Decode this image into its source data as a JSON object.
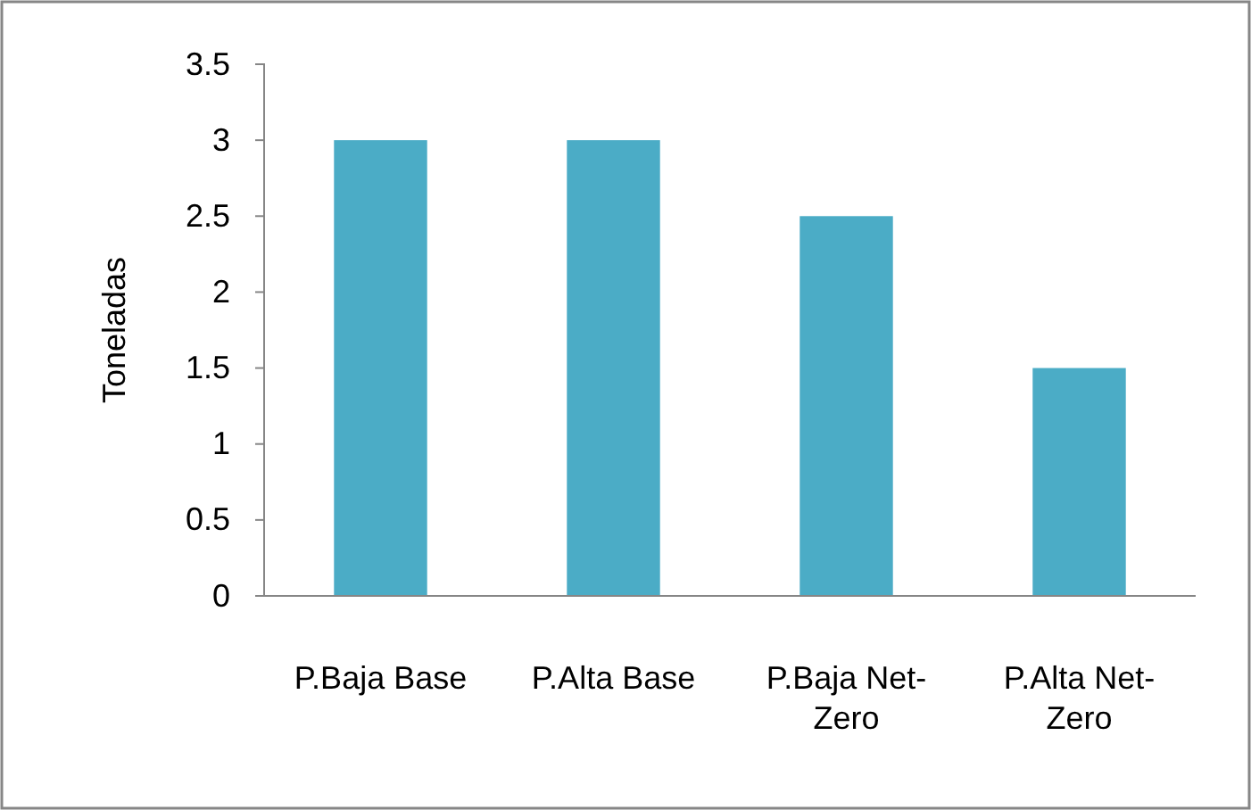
{
  "chart_data": {
    "type": "bar",
    "ylabel": "Toneladas",
    "categories": [
      "P.Baja Base",
      "P.Alta Base",
      "P.Baja Net-Zero",
      "P.Alta Net-Zero"
    ],
    "values": [
      3,
      3,
      2.5,
      1.5
    ],
    "color": "#4bacc6",
    "ylim": [
      0,
      3.5
    ],
    "yticks": [
      0,
      0.5,
      1,
      1.5,
      2,
      2.5,
      3,
      3.5
    ],
    "grid": false
  }
}
